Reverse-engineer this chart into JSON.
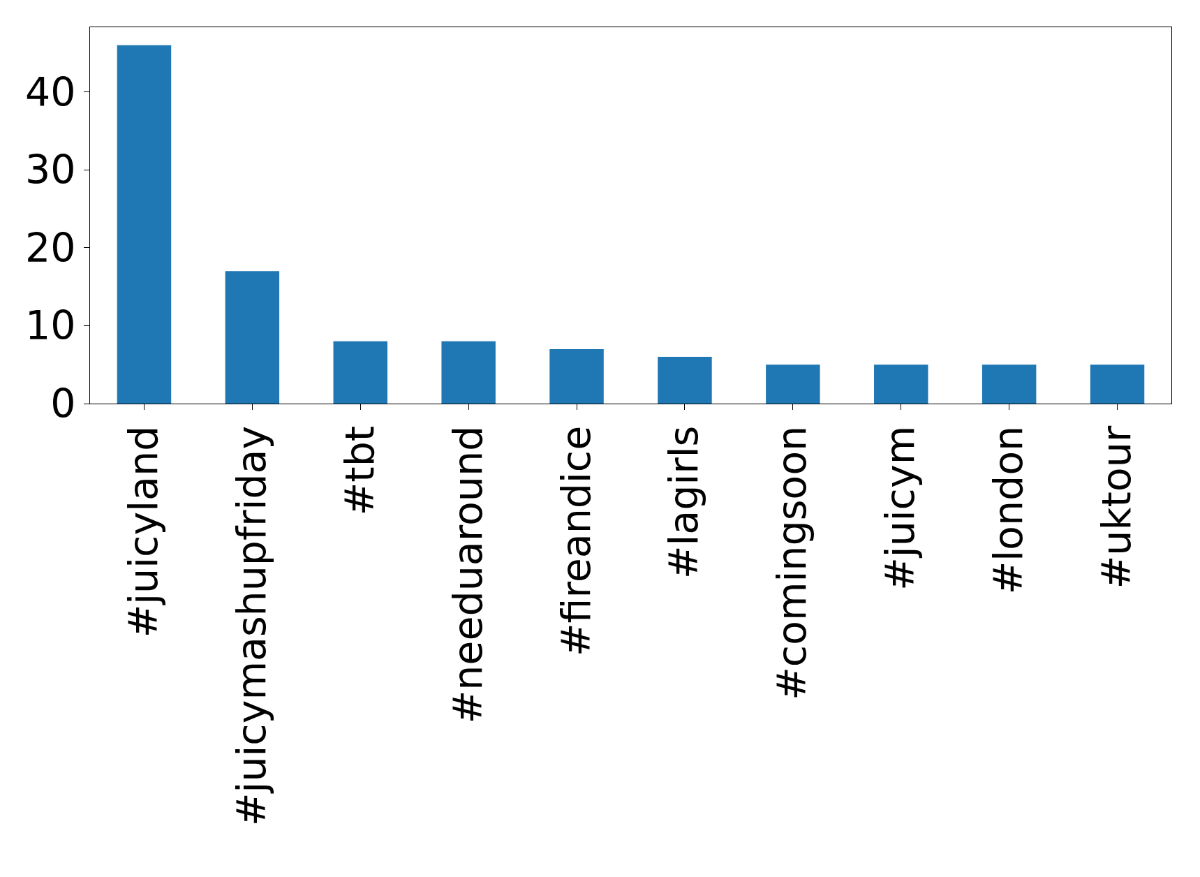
{
  "chart_data": {
    "type": "bar",
    "categories": [
      "#juicyland",
      "#juicymashupfriday",
      "#tbt",
      "#needuaround",
      "#fireandice",
      "#lagirls",
      "#comingsoon",
      "#juicym",
      "#london",
      "#uktour"
    ],
    "values": [
      46,
      17,
      8,
      8,
      7,
      6,
      5,
      5,
      5,
      5
    ],
    "color": "#1f77b4",
    "ylim": [
      0,
      48.3
    ],
    "yticks": [
      0,
      10,
      20,
      30,
      40
    ]
  }
}
